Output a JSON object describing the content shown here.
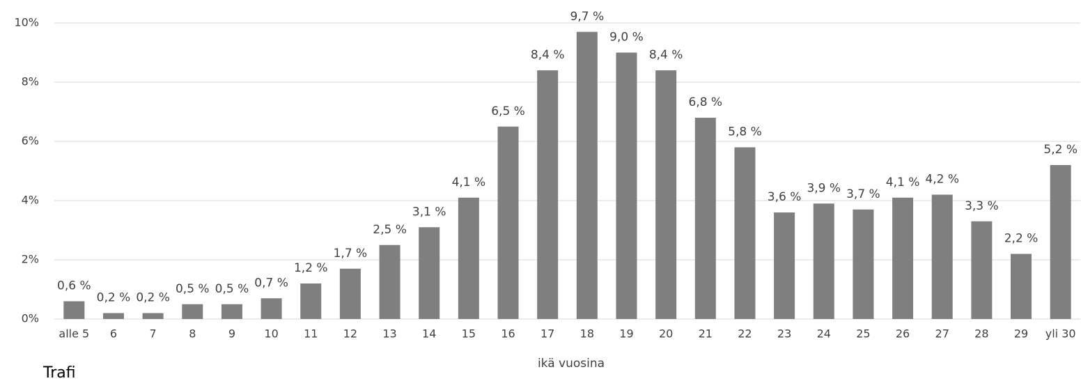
{
  "chart_data": {
    "type": "bar",
    "categories": [
      "alle 5",
      "6",
      "7",
      "8",
      "9",
      "10",
      "11",
      "12",
      "13",
      "14",
      "15",
      "16",
      "17",
      "18",
      "19",
      "20",
      "21",
      "22",
      "23",
      "24",
      "25",
      "26",
      "27",
      "28",
      "29",
      "yli 30"
    ],
    "values": [
      0.6,
      0.2,
      0.2,
      0.5,
      0.5,
      0.7,
      1.2,
      1.7,
      2.5,
      3.1,
      4.1,
      6.5,
      8.4,
      9.7,
      9.0,
      8.4,
      6.8,
      5.8,
      3.6,
      3.9,
      3.7,
      4.1,
      4.2,
      3.3,
      2.2,
      5.2
    ],
    "value_labels": [
      "0,6 %",
      "0,2 %",
      "0,2 %",
      "0,5 %",
      "0,5 %",
      "0,7 %",
      "1,2 %",
      "1,7 %",
      "2,5 %",
      "3,1 %",
      "4,1 %",
      "6,5 %",
      "8,4 %",
      "9,7 %",
      "9,0 %",
      "8,4 %",
      "6,8 %",
      "5,8 %",
      "3,6 %",
      "3,9 %",
      "3,7 %",
      "4,1 %",
      "4,2 %",
      "3,3 %",
      "2,2 %",
      "5,2 %"
    ],
    "color": "#7f7f7f",
    "x_label": "ikä vuosina",
    "source": "Trafi",
    "ylim": [
      0,
      10
    ],
    "yticks": [
      {
        "value": 0,
        "label": "0%"
      },
      {
        "value": 2,
        "label": "2%"
      },
      {
        "value": 4,
        "label": "4%"
      },
      {
        "value": 6,
        "label": "6%"
      },
      {
        "value": 8,
        "label": "8%"
      },
      {
        "value": 10,
        "label": "10%"
      }
    ],
    "grid": true
  }
}
